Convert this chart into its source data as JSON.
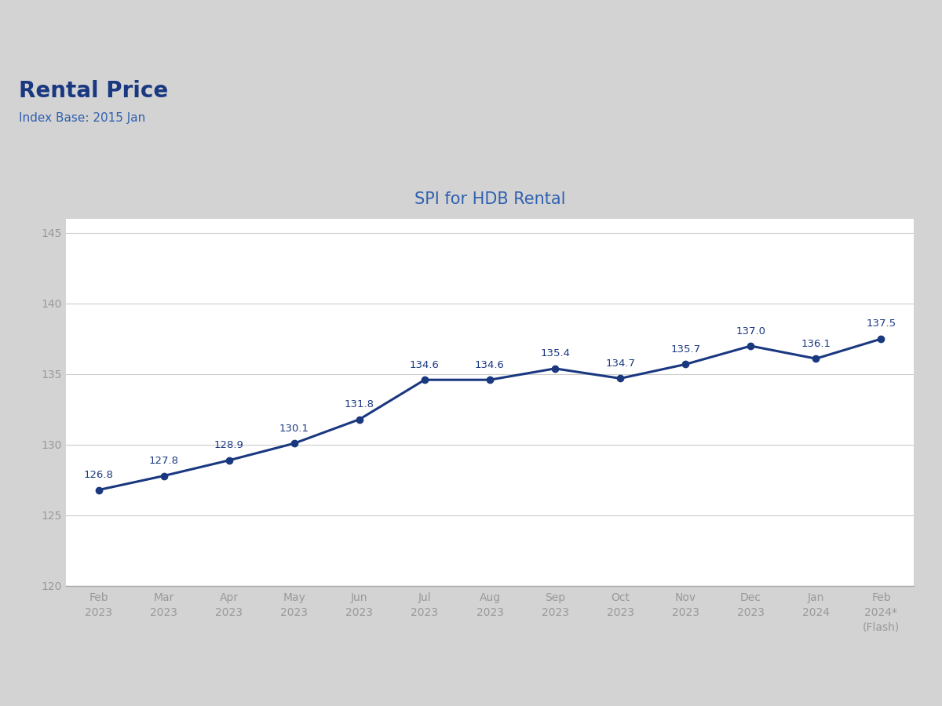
{
  "title": "SPI for HDB Rental",
  "rental_price_label": "Rental Price",
  "index_base_label": "Index Base: 2015 Jan",
  "x_labels": [
    "Feb\n2023",
    "Mar\n2023",
    "Apr\n2023",
    "May\n2023",
    "Jun\n2023",
    "Jul\n2023",
    "Aug\n2023",
    "Sep\n2023",
    "Oct\n2023",
    "Nov\n2023",
    "Dec\n2023",
    "Jan\n2024",
    "Feb\n2024*\n(Flash)"
  ],
  "values": [
    126.8,
    127.8,
    128.9,
    130.1,
    131.8,
    134.6,
    134.6,
    135.4,
    134.7,
    135.7,
    137.0,
    136.1,
    137.5
  ],
  "ylim": [
    120,
    146
  ],
  "yticks": [
    120,
    125,
    130,
    135,
    140,
    145
  ],
  "line_color": "#1a3880",
  "marker_color": "#1a3880",
  "title_color": "#3060b0",
  "rental_price_color": "#1a3880",
  "index_base_color": "#3060b0",
  "background_color": "#ffffff",
  "outer_background": "#d3d3d3",
  "grid_color": "#cccccc",
  "tick_label_color": "#999999",
  "data_label_color": "#1a3880",
  "title_fontsize": 15,
  "rental_price_fontsize": 20,
  "index_base_fontsize": 11,
  "data_label_fontsize": 9.5,
  "tick_fontsize": 10
}
